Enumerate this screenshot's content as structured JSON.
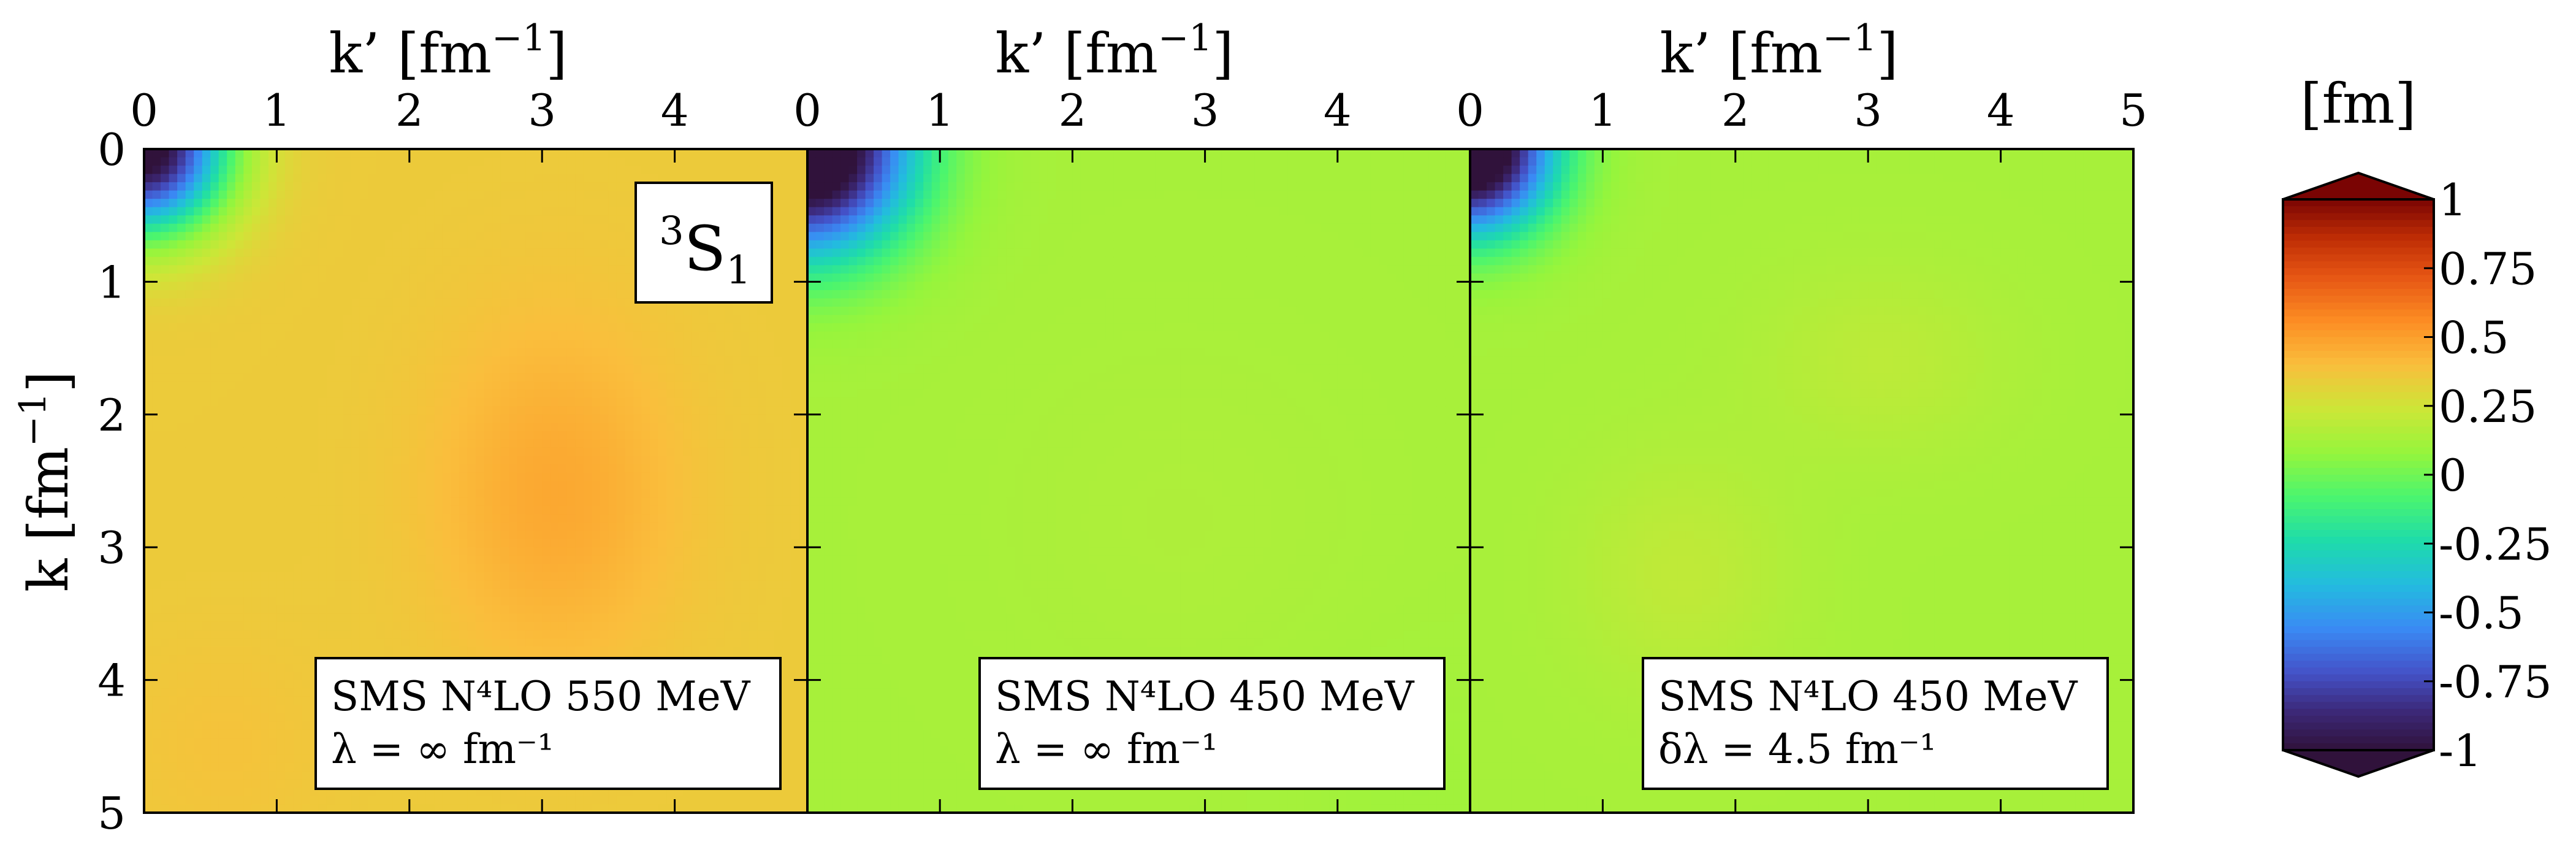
{
  "figure": {
    "colorbar_unit": "[fm]",
    "spectral_label": "3S1",
    "spectral_label_parts": {
      "sup": "3",
      "base": "S",
      "sub": "1"
    }
  },
  "chart_data": [
    {
      "type": "heatmap",
      "panel": 1,
      "xlabel": "k’ [fm⁻¹]",
      "ylabel": "k [fm⁻¹]",
      "xlim": [
        0,
        5
      ],
      "ylim": [
        0,
        5
      ],
      "x_ticks": [
        "0",
        "1",
        "2",
        "3",
        "4"
      ],
      "y_ticks": [
        "0",
        "1",
        "2",
        "3",
        "4",
        "5"
      ],
      "legend_lines": [
        "SMS N⁴LO 550 MeV",
        "λ = ∞ fm⁻¹"
      ],
      "field": {
        "base": 0.35,
        "blobs": [
          {
            "x": 0,
            "y": 0,
            "sx": 0.6,
            "sy": 0.6,
            "a": -1.45,
            "kind": "prod"
          },
          {
            "x": 3.1,
            "y": 2.6,
            "sx": 0.9,
            "sy": 1.3,
            "a": 0.12,
            "kind": "prod"
          },
          {
            "x": 0.6,
            "y": 4.5,
            "sx": 0.8,
            "sy": 0.8,
            "a": 0.03,
            "kind": "prod"
          }
        ]
      }
    },
    {
      "type": "heatmap",
      "panel": 2,
      "xlabel": "k’ [fm⁻¹]",
      "ylabel": "",
      "xlim": [
        0,
        5
      ],
      "ylim": [
        0,
        5
      ],
      "x_ticks": [
        "0",
        "1",
        "2",
        "3",
        "4"
      ],
      "legend_lines": [
        "SMS N⁴LO 450 MeV",
        "λ = ∞ fm⁻¹"
      ],
      "field": {
        "base": 0.13,
        "blobs": [
          {
            "x": 0,
            "y": 0,
            "sx": 0.75,
            "sy": 0.75,
            "a": -1.45,
            "kind": "prod"
          },
          {
            "x": 2.8,
            "y": 2.8,
            "sx": 1.4,
            "sy": 1.4,
            "a": 0.02,
            "kind": "prod"
          },
          {
            "x": 4.6,
            "y": 4.8,
            "sx": 1.0,
            "sy": 1.0,
            "a": -0.02,
            "kind": "prod"
          }
        ]
      }
    },
    {
      "type": "heatmap",
      "panel": 3,
      "xlabel": "k’ [fm⁻¹]",
      "ylabel": "",
      "xlim": [
        0,
        5
      ],
      "ylim": [
        0,
        5
      ],
      "x_ticks": [
        "0",
        "1",
        "2",
        "3",
        "4",
        "5"
      ],
      "legend_lines": [
        "SMS N⁴LO 450 MeV",
        "δλ = 4.5 fm⁻¹"
      ],
      "field": {
        "base": 0.13,
        "blobs": [
          {
            "x": 0,
            "y": 0,
            "sx": 0.6,
            "sy": 0.6,
            "a": -1.45,
            "kind": "prod"
          },
          {
            "x": 3.1,
            "y": 1.6,
            "sx": 0.9,
            "sy": 0.7,
            "a": 0.06,
            "kind": "prod"
          },
          {
            "x": 1.6,
            "y": 3.2,
            "sx": 0.8,
            "sy": 0.9,
            "a": 0.07,
            "kind": "prod"
          }
        ]
      }
    },
    {
      "type": "colorbar",
      "unit": "[fm]",
      "range": [
        -1,
        1
      ],
      "extend": "both",
      "colormap": "turbo",
      "ticks": [
        "-1",
        "-0.75",
        "-0.5",
        "-0.25",
        "0",
        "0.25",
        "0.5",
        "0.75",
        "1"
      ],
      "tick_values": [
        -1,
        -0.75,
        -0.5,
        -0.25,
        0,
        0.25,
        0.5,
        0.75,
        1
      ]
    }
  ]
}
